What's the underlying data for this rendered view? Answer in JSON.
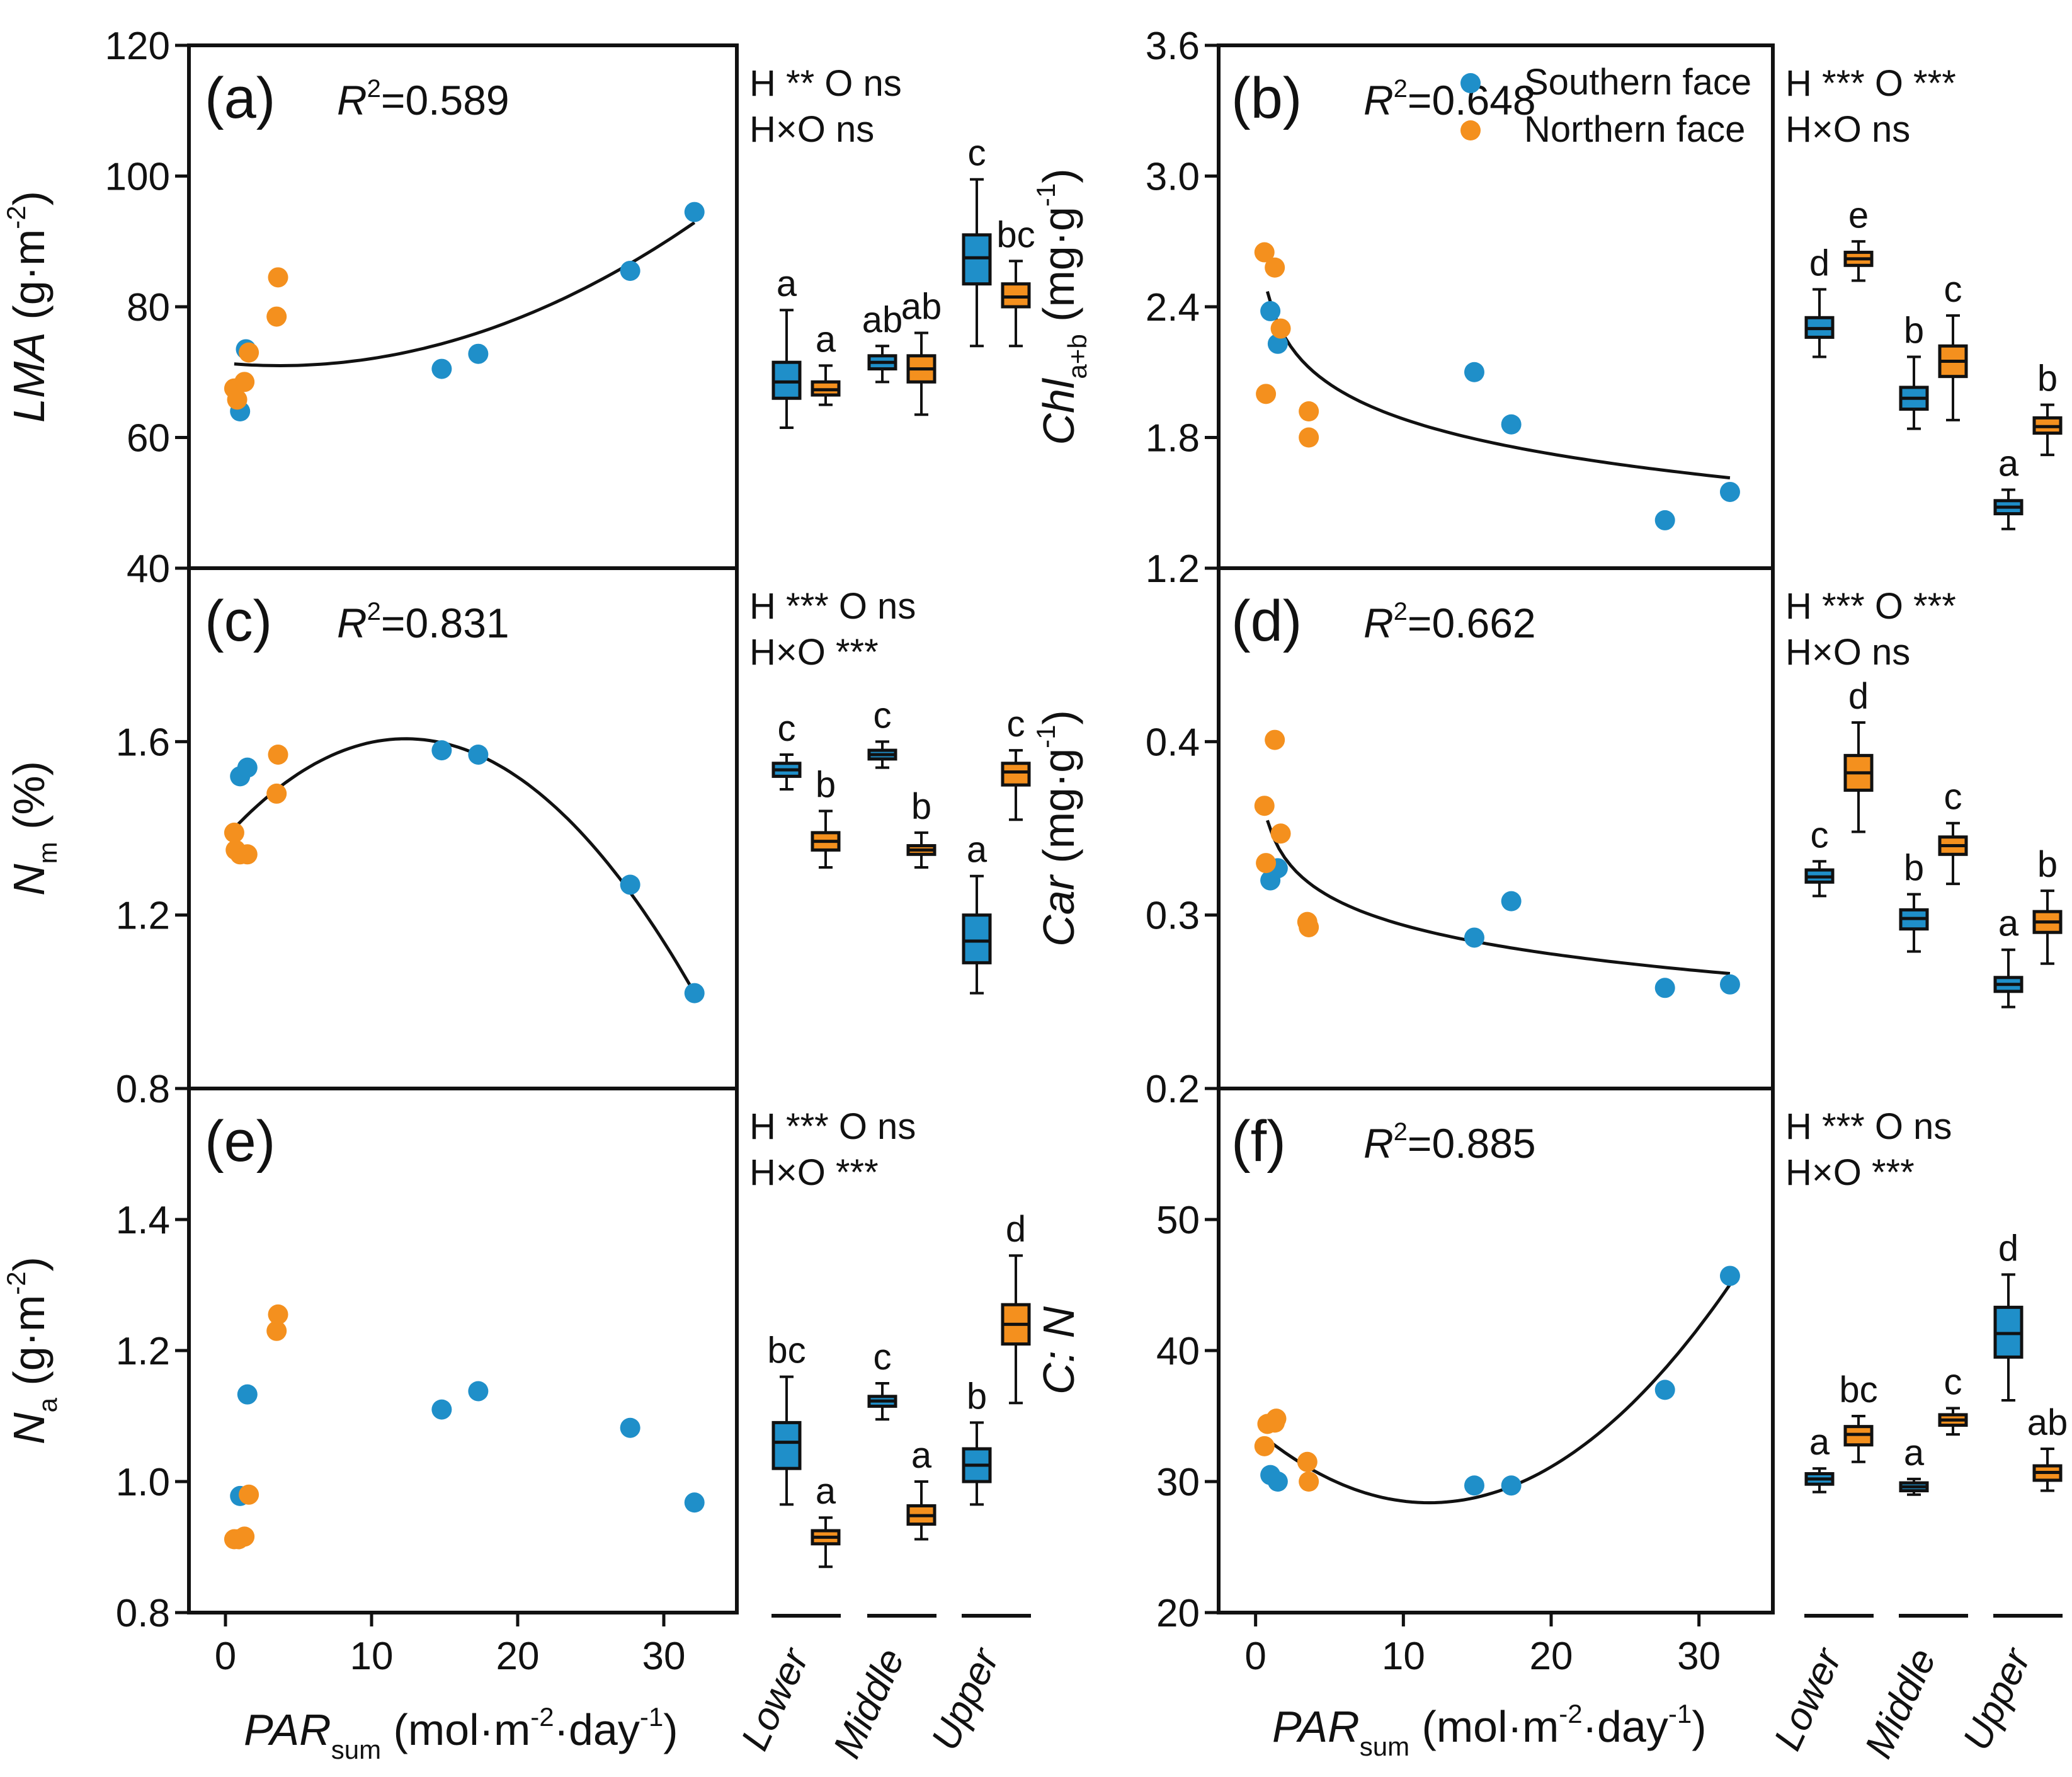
{
  "colors": {
    "southern": "#1f8fc9",
    "northern": "#f4901e",
    "axis": "#111111"
  },
  "legend": {
    "southern": "Southern face",
    "northern": "Northern face"
  },
  "shared": {
    "x_ticks": [
      0,
      10,
      20,
      30
    ],
    "x_range": [
      -2.5,
      35
    ],
    "x_label": "PAR",
    "x_label_sub": "sum",
    "x_unit_open": " (mol·m",
    "x_unit_exp1": "-2",
    "x_unit_mid": "·day",
    "x_unit_exp2": "-1",
    "x_unit_close": ")",
    "groups": [
      "Lower",
      "Middle",
      "Upper"
    ]
  },
  "chart_data": [
    {
      "type": "scatter",
      "id": "a",
      "panel_label": "(a)",
      "r2_prefix": "R",
      "r2_exp": "2",
      "r2_value": "=0.589",
      "stats_line1": "H **  O ns",
      "stats_line2": "H×O ns",
      "ylabel_main": "LMA",
      "ylabel_sub": "",
      "ylabel_unit": " (g·m",
      "ylabel_exp": "-2",
      "ylabel_close": ")",
      "ylim": [
        40,
        120
      ],
      "y_ticks": [
        40,
        60,
        80,
        100,
        120
      ],
      "y_tick_labels": [
        "40",
        "60",
        "80",
        "100",
        "120"
      ],
      "southern": [
        [
          1.0,
          64
        ],
        [
          1.4,
          73.5
        ],
        [
          14.8,
          70.5
        ],
        [
          17.3,
          72.8
        ],
        [
          27.7,
          85.5
        ],
        [
          32.1,
          94.5
        ]
      ],
      "northern": [
        [
          0.6,
          67.5
        ],
        [
          0.8,
          65.8
        ],
        [
          1.3,
          68.5
        ],
        [
          1.6,
          73
        ],
        [
          3.5,
          78.5
        ],
        [
          3.6,
          84.5
        ]
      ],
      "fit": {
        "kind": "quadratic",
        "coef": [
          71.36,
          -0.2005,
          0.02714
        ],
        "x_range": [
          0.6,
          32.1
        ]
      },
      "boxes": [
        {
          "group": "Lower",
          "face": "southern",
          "median": 68.5,
          "q1": 66,
          "q3": 71.5,
          "min": 61.5,
          "max": 79.5,
          "letter": "a"
        },
        {
          "group": "Lower",
          "face": "northern",
          "median": 67.3,
          "q1": 66.5,
          "q3": 68.5,
          "min": 65,
          "max": 71,
          "letter": "a"
        },
        {
          "group": "Middle",
          "face": "southern",
          "median": 71.5,
          "q1": 70.5,
          "q3": 72.5,
          "min": 68.5,
          "max": 74,
          "letter": "ab"
        },
        {
          "group": "Middle",
          "face": "northern",
          "median": 70.5,
          "q1": 68.5,
          "q3": 72.5,
          "min": 63.5,
          "max": 76,
          "letter": "ab"
        },
        {
          "group": "Upper",
          "face": "southern",
          "median": 87.5,
          "q1": 83.5,
          "q3": 91,
          "min": 74,
          "max": 99.5,
          "letter": "c"
        },
        {
          "group": "Upper",
          "face": "northern",
          "median": 81.5,
          "q1": 80,
          "q3": 83.5,
          "min": 74,
          "max": 87,
          "letter": "bc"
        }
      ]
    },
    {
      "type": "scatter",
      "id": "b",
      "panel_label": "(b)",
      "r2_prefix": "R",
      "r2_exp": "2",
      "r2_value": "=0.648",
      "stats_line1": "H ***  O ***",
      "stats_line2": "H×O ns",
      "ylabel_main": "Chl",
      "ylabel_sub": "a+b",
      "ylabel_unit": " (mg·g",
      "ylabel_exp": "-1",
      "ylabel_close": ")",
      "ylim": [
        1.2,
        3.6
      ],
      "y_ticks": [
        1.2,
        1.8,
        2.4,
        3.0,
        3.6
      ],
      "y_tick_labels": [
        "1.2",
        "1.8",
        "2.4",
        "3.0",
        "3.6"
      ],
      "southern": [
        [
          1.0,
          2.38
        ],
        [
          1.5,
          2.23
        ],
        [
          14.8,
          2.1
        ],
        [
          17.3,
          1.86
        ],
        [
          27.7,
          1.42
        ],
        [
          32.1,
          1.55
        ]
      ],
      "northern": [
        [
          0.6,
          2.65
        ],
        [
          1.3,
          2.58
        ],
        [
          1.7,
          2.3
        ],
        [
          0.7,
          2.0
        ],
        [
          3.6,
          1.92
        ],
        [
          3.6,
          1.8
        ]
      ],
      "fit": {
        "kind": "log",
        "coef": [
          2.4185,
          -0.2317
        ],
        "x_range": [
          0.8,
          32.1
        ]
      },
      "boxes": [
        {
          "group": "Lower",
          "face": "southern",
          "median": 2.3,
          "q1": 2.26,
          "q3": 2.35,
          "min": 2.17,
          "max": 2.48,
          "letter": "d"
        },
        {
          "group": "Lower",
          "face": "northern",
          "median": 2.62,
          "q1": 2.59,
          "q3": 2.65,
          "min": 2.52,
          "max": 2.7,
          "letter": "e"
        },
        {
          "group": "Middle",
          "face": "southern",
          "median": 1.98,
          "q1": 1.93,
          "q3": 2.03,
          "min": 1.84,
          "max": 2.17,
          "letter": "b"
        },
        {
          "group": "Middle",
          "face": "northern",
          "median": 2.15,
          "q1": 2.08,
          "q3": 2.22,
          "min": 1.88,
          "max": 2.36,
          "letter": "c"
        },
        {
          "group": "Upper",
          "face": "southern",
          "median": 1.48,
          "q1": 1.45,
          "q3": 1.51,
          "min": 1.38,
          "max": 1.56,
          "letter": "a"
        },
        {
          "group": "Upper",
          "face": "northern",
          "median": 1.85,
          "q1": 1.82,
          "q3": 1.89,
          "min": 1.72,
          "max": 1.95,
          "letter": "b"
        }
      ]
    },
    {
      "type": "scatter",
      "id": "c",
      "panel_label": "(c)",
      "r2_prefix": "R",
      "r2_exp": "2",
      "r2_value": "=0.831",
      "stats_line1": "H ***  O ns",
      "stats_line2": "H×O ***",
      "ylabel_main": "N",
      "ylabel_sub": "m",
      "ylabel_unit": " (%)",
      "ylabel_exp": "",
      "ylabel_close": "",
      "ylim": [
        0.8,
        2.0
      ],
      "y_ticks": [
        0.8,
        1.2,
        1.6
      ],
      "y_tick_labels": [
        "0.8",
        "1.2",
        "1.6"
      ],
      "southern": [
        [
          1.0,
          1.52
        ],
        [
          1.5,
          1.54
        ],
        [
          14.8,
          1.58
        ],
        [
          17.3,
          1.57
        ],
        [
          27.7,
          1.27
        ],
        [
          32.1,
          1.02
        ]
      ],
      "northern": [
        [
          0.6,
          1.39
        ],
        [
          0.7,
          1.35
        ],
        [
          1.0,
          1.34
        ],
        [
          1.5,
          1.34
        ],
        [
          3.5,
          1.48
        ],
        [
          3.6,
          1.57
        ]
      ],
      "fit": {
        "kind": "quadratic",
        "coef": [
          1.3787,
          0.03698,
          -0.0015
        ],
        "x_range": [
          0.6,
          32.1
        ]
      },
      "boxes": [
        {
          "group": "Lower",
          "face": "southern",
          "median": 1.535,
          "q1": 1.52,
          "q3": 1.55,
          "min": 1.49,
          "max": 1.57,
          "letter": "c"
        },
        {
          "group": "Lower",
          "face": "northern",
          "median": 1.37,
          "q1": 1.35,
          "q3": 1.39,
          "min": 1.31,
          "max": 1.44,
          "letter": "b"
        },
        {
          "group": "Middle",
          "face": "southern",
          "median": 1.57,
          "q1": 1.56,
          "q3": 1.58,
          "min": 1.54,
          "max": 1.6,
          "letter": "c"
        },
        {
          "group": "Middle",
          "face": "northern",
          "median": 1.35,
          "q1": 1.34,
          "q3": 1.36,
          "min": 1.31,
          "max": 1.39,
          "letter": "b"
        },
        {
          "group": "Upper",
          "face": "southern",
          "median": 1.14,
          "q1": 1.09,
          "q3": 1.2,
          "min": 1.02,
          "max": 1.29,
          "letter": "a"
        },
        {
          "group": "Upper",
          "face": "northern",
          "median": 1.53,
          "q1": 1.5,
          "q3": 1.55,
          "min": 1.42,
          "max": 1.58,
          "letter": "c"
        }
      ]
    },
    {
      "type": "scatter",
      "id": "d",
      "panel_label": "(d)",
      "r2_prefix": "R",
      "r2_exp": "2",
      "r2_value": "=0.662",
      "stats_line1": "H ***  O ***",
      "stats_line2": "H×O ns",
      "ylabel_main": "Car",
      "ylabel_sub": "",
      "ylabel_unit": " (mg·g",
      "ylabel_exp": "-1",
      "ylabel_close": ")",
      "ylim": [
        0.2,
        0.5
      ],
      "y_ticks": [
        0.2,
        0.3,
        0.4
      ],
      "y_tick_labels": [
        "0.2",
        "0.3",
        "0.4"
      ],
      "southern": [
        [
          1.0,
          0.32
        ],
        [
          1.5,
          0.327
        ],
        [
          14.8,
          0.287
        ],
        [
          17.3,
          0.308
        ],
        [
          27.7,
          0.258
        ],
        [
          32.1,
          0.26
        ]
      ],
      "northern": [
        [
          0.6,
          0.363
        ],
        [
          1.3,
          0.401
        ],
        [
          1.7,
          0.347
        ],
        [
          0.7,
          0.33
        ],
        [
          3.5,
          0.296
        ],
        [
          3.6,
          0.293
        ]
      ],
      "fit": {
        "kind": "log",
        "coef": [
          0.34928,
          -0.02393
        ],
        "x_range": [
          0.8,
          32.1
        ]
      },
      "boxes": [
        {
          "group": "Lower",
          "face": "southern",
          "median": 0.322,
          "q1": 0.319,
          "q3": 0.326,
          "min": 0.311,
          "max": 0.331,
          "letter": "c"
        },
        {
          "group": "Lower",
          "face": "northern",
          "median": 0.382,
          "q1": 0.372,
          "q3": 0.392,
          "min": 0.348,
          "max": 0.411,
          "letter": "d"
        },
        {
          "group": "Middle",
          "face": "southern",
          "median": 0.298,
          "q1": 0.292,
          "q3": 0.303,
          "min": 0.279,
          "max": 0.312,
          "letter": "b"
        },
        {
          "group": "Middle",
          "face": "northern",
          "median": 0.34,
          "q1": 0.335,
          "q3": 0.345,
          "min": 0.318,
          "max": 0.353,
          "letter": "c"
        },
        {
          "group": "Upper",
          "face": "southern",
          "median": 0.26,
          "q1": 0.256,
          "q3": 0.264,
          "min": 0.247,
          "max": 0.28,
          "letter": "a"
        },
        {
          "group": "Upper",
          "face": "northern",
          "median": 0.296,
          "q1": 0.29,
          "q3": 0.302,
          "min": 0.272,
          "max": 0.314,
          "letter": "b"
        }
      ]
    },
    {
      "type": "scatter",
      "id": "e",
      "panel_label": "(e)",
      "r2_prefix": "",
      "r2_exp": "",
      "r2_value": "",
      "stats_line1": "H ***  O ns",
      "stats_line2": "H×O ***",
      "ylabel_main": "N",
      "ylabel_sub": "a",
      "ylabel_unit": " (g·m",
      "ylabel_exp": "-2",
      "ylabel_close": ")",
      "ylim": [
        0.8,
        1.6
      ],
      "y_ticks": [
        0.8,
        1.0,
        1.2,
        1.4
      ],
      "y_tick_labels": [
        "0.8",
        "1.0",
        "1.2",
        "1.4"
      ],
      "southern": [
        [
          1.0,
          0.978
        ],
        [
          1.5,
          1.133
        ],
        [
          14.8,
          1.11
        ],
        [
          17.3,
          1.138
        ],
        [
          27.7,
          1.082
        ],
        [
          32.1,
          0.968
        ]
      ],
      "northern": [
        [
          0.6,
          0.912
        ],
        [
          0.9,
          0.912
        ],
        [
          1.3,
          0.916
        ],
        [
          1.6,
          0.98
        ],
        [
          3.5,
          1.23
        ],
        [
          3.6,
          1.255
        ]
      ],
      "fit": null,
      "boxes": [
        {
          "group": "Lower",
          "face": "southern",
          "median": 1.06,
          "q1": 1.02,
          "q3": 1.09,
          "min": 0.965,
          "max": 1.16,
          "letter": "bc"
        },
        {
          "group": "Lower",
          "face": "northern",
          "median": 0.915,
          "q1": 0.905,
          "q3": 0.925,
          "min": 0.87,
          "max": 0.945,
          "letter": "a"
        },
        {
          "group": "Middle",
          "face": "southern",
          "median": 1.123,
          "q1": 1.115,
          "q3": 1.13,
          "min": 1.095,
          "max": 1.15,
          "letter": "c"
        },
        {
          "group": "Middle",
          "face": "northern",
          "median": 0.948,
          "q1": 0.935,
          "q3": 0.963,
          "min": 0.912,
          "max": 1.0,
          "letter": "a"
        },
        {
          "group": "Upper",
          "face": "southern",
          "median": 1.025,
          "q1": 1.0,
          "q3": 1.05,
          "min": 0.965,
          "max": 1.09,
          "letter": "b"
        },
        {
          "group": "Upper",
          "face": "northern",
          "median": 1.24,
          "q1": 1.21,
          "q3": 1.27,
          "min": 1.12,
          "max": 1.345,
          "letter": "d"
        }
      ]
    },
    {
      "type": "scatter",
      "id": "f",
      "panel_label": "(f)",
      "r2_prefix": "R",
      "r2_exp": "2",
      "r2_value": "=0.885",
      "stats_line1": "H ***  O ns",
      "stats_line2": "H×O ***",
      "ylabel_main": "C: N",
      "ylabel_sub": "",
      "ylabel_unit": "",
      "ylabel_exp": "",
      "ylabel_close": "",
      "ylim": [
        20,
        60
      ],
      "y_ticks": [
        20,
        30,
        40,
        50
      ],
      "y_tick_labels": [
        "20",
        "30",
        "40",
        "50"
      ],
      "southern": [
        [
          1.0,
          30.5
        ],
        [
          1.5,
          30.0
        ],
        [
          14.8,
          29.7
        ],
        [
          17.3,
          29.7
        ],
        [
          27.7,
          37.0
        ],
        [
          32.1,
          45.7
        ]
      ],
      "northern": [
        [
          0.6,
          32.7
        ],
        [
          0.8,
          34.4
        ],
        [
          1.4,
          34.8
        ],
        [
          3.5,
          31.5
        ],
        [
          3.6,
          30.0
        ],
        [
          1.3,
          34.5
        ]
      ],
      "fit": {
        "kind": "quadratic",
        "coef": [
          33.93,
          -0.9443,
          0.0402
        ],
        "x_range": [
          0.8,
          32.1
        ]
      },
      "boxes": [
        {
          "group": "Lower",
          "face": "southern",
          "median": 30.2,
          "q1": 29.8,
          "q3": 30.6,
          "min": 29.2,
          "max": 31.0,
          "letter": "a"
        },
        {
          "group": "Lower",
          "face": "northern",
          "median": 33.6,
          "q1": 32.8,
          "q3": 34.2,
          "min": 31.5,
          "max": 35.0,
          "letter": "bc"
        },
        {
          "group": "Middle",
          "face": "southern",
          "median": 29.6,
          "q1": 29.3,
          "q3": 29.9,
          "min": 29.0,
          "max": 30.2,
          "letter": "a"
        },
        {
          "group": "Middle",
          "face": "northern",
          "median": 34.7,
          "q1": 34.3,
          "q3": 35.1,
          "min": 33.6,
          "max": 35.6,
          "letter": "c"
        },
        {
          "group": "Upper",
          "face": "southern",
          "median": 41.3,
          "q1": 39.5,
          "q3": 43.3,
          "min": 36.2,
          "max": 45.8,
          "letter": "d"
        },
        {
          "group": "Upper",
          "face": "northern",
          "median": 30.7,
          "q1": 30.1,
          "q3": 31.2,
          "min": 29.3,
          "max": 32.5,
          "letter": "ab"
        }
      ]
    }
  ]
}
